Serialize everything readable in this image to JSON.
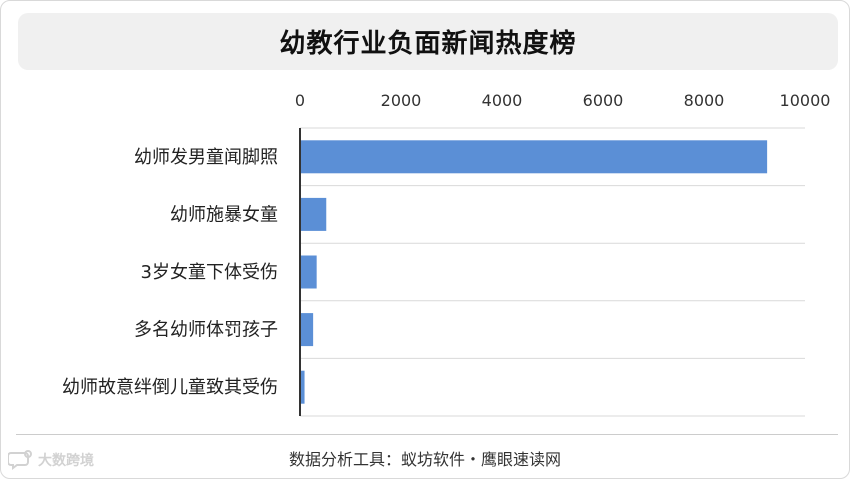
{
  "title": "幼教行业负面新闻热度榜",
  "footer": "数据分析工具：蚁坊软件・鹰眼速读网",
  "watermark": {
    "text": "大数跨境",
    "icon": "speech-bubble-logo-icon"
  },
  "colors": {
    "bar": "#5b8fd6",
    "grid": "#d9d9d9",
    "axis": "#333333",
    "title_bg": "#f0f0f0"
  },
  "chart_data": {
    "type": "bar",
    "orientation": "horizontal",
    "title": "幼教行业负面新闻热度榜",
    "categories": [
      "幼师发男童闻脚照",
      "幼师施暴女童",
      "3岁女童下体受伤",
      "多名幼师体罚孩子",
      "幼师故意绊倒儿童致其受伤"
    ],
    "values": [
      9250,
      520,
      330,
      260,
      90
    ],
    "xlim": [
      0,
      10000
    ],
    "xticks": [
      "0",
      "2000",
      "4000",
      "6000",
      "8000",
      "10000"
    ],
    "xtick_values": [
      0,
      2000,
      4000,
      6000,
      8000,
      10000
    ],
    "x_axis_position": "top",
    "grid": "horizontal separators between categories",
    "legend": "none"
  }
}
